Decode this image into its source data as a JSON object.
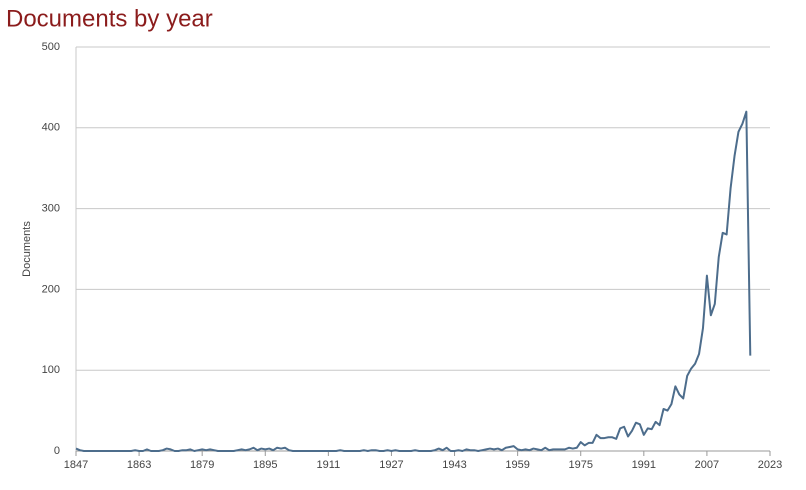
{
  "chart_data": {
    "type": "line",
    "title": "Documents by year",
    "y_label": "Documents",
    "x": [
      1847,
      1848,
      1849,
      1850,
      1851,
      1852,
      1853,
      1854,
      1855,
      1856,
      1857,
      1858,
      1859,
      1860,
      1861,
      1862,
      1863,
      1864,
      1865,
      1866,
      1867,
      1868,
      1869,
      1870,
      1871,
      1872,
      1873,
      1874,
      1875,
      1876,
      1877,
      1878,
      1879,
      1880,
      1881,
      1882,
      1883,
      1884,
      1885,
      1886,
      1887,
      1888,
      1889,
      1890,
      1891,
      1892,
      1893,
      1894,
      1895,
      1896,
      1897,
      1898,
      1899,
      1900,
      1901,
      1902,
      1903,
      1904,
      1905,
      1906,
      1907,
      1908,
      1909,
      1910,
      1911,
      1912,
      1913,
      1914,
      1915,
      1916,
      1917,
      1918,
      1919,
      1920,
      1921,
      1922,
      1923,
      1924,
      1925,
      1926,
      1927,
      1928,
      1929,
      1930,
      1931,
      1932,
      1933,
      1934,
      1935,
      1936,
      1937,
      1938,
      1939,
      1940,
      1941,
      1942,
      1943,
      1944,
      1945,
      1946,
      1947,
      1948,
      1949,
      1950,
      1951,
      1952,
      1953,
      1954,
      1955,
      1956,
      1957,
      1958,
      1959,
      1960,
      1961,
      1962,
      1963,
      1964,
      1965,
      1966,
      1967,
      1968,
      1969,
      1970,
      1971,
      1972,
      1973,
      1974,
      1975,
      1976,
      1977,
      1978,
      1979,
      1980,
      1981,
      1982,
      1983,
      1984,
      1985,
      1986,
      1987,
      1988,
      1989,
      1990,
      1991,
      1992,
      1993,
      1994,
      1995,
      1996,
      1997,
      1998,
      1999,
      2000,
      2001,
      2002,
      2003,
      2004,
      2005,
      2006,
      2007,
      2008,
      2009,
      2010,
      2011,
      2012,
      2013,
      2014,
      2015,
      2016,
      2017,
      2018
    ],
    "series": [
      {
        "name": "Documents",
        "color": "#4d6d8c",
        "values": [
          3,
          1,
          0,
          0,
          0,
          0,
          0,
          0,
          0,
          0,
          0,
          0,
          0,
          0,
          0,
          1,
          0,
          0,
          2,
          0,
          0,
          0,
          1,
          3,
          2,
          0,
          0,
          1,
          1,
          2,
          0,
          1,
          2,
          1,
          2,
          1,
          0,
          0,
          0,
          0,
          0,
          1,
          2,
          1,
          2,
          4,
          1,
          3,
          2,
          3,
          1,
          4,
          3,
          4,
          1,
          0,
          0,
          0,
          0,
          0,
          0,
          0,
          0,
          0,
          0,
          0,
          0,
          1,
          0,
          0,
          0,
          0,
          0,
          1,
          0,
          1,
          1,
          0,
          0,
          1,
          0,
          1,
          0,
          0,
          0,
          0,
          1,
          0,
          0,
          0,
          0,
          1,
          3,
          1,
          4,
          0,
          0,
          1,
          0,
          2,
          1,
          1,
          0,
          1,
          2,
          3,
          2,
          3,
          1,
          4,
          5,
          6,
          2,
          1,
          2,
          1,
          3,
          2,
          1,
          4,
          1,
          2,
          2,
          2,
          2,
          4,
          3,
          4,
          11,
          7,
          10,
          10,
          20,
          16,
          16,
          17,
          17,
          15,
          28,
          30,
          18,
          25,
          35,
          33,
          20,
          28,
          27,
          36,
          32,
          52,
          50,
          58,
          80,
          70,
          65,
          93,
          102,
          108,
          120,
          152,
          217,
          168,
          182,
          240,
          270,
          268,
          325,
          365,
          395,
          405,
          420,
          118
        ]
      }
    ],
    "xlim": [
      1847,
      2023
    ],
    "xticks": [
      1847,
      1863,
      1879,
      1895,
      1911,
      1927,
      1943,
      1959,
      1975,
      1991,
      2007,
      2023
    ],
    "ylim": [
      0,
      500
    ],
    "yticks": [
      0,
      100,
      200,
      300,
      400,
      500
    ],
    "grid": true
  }
}
